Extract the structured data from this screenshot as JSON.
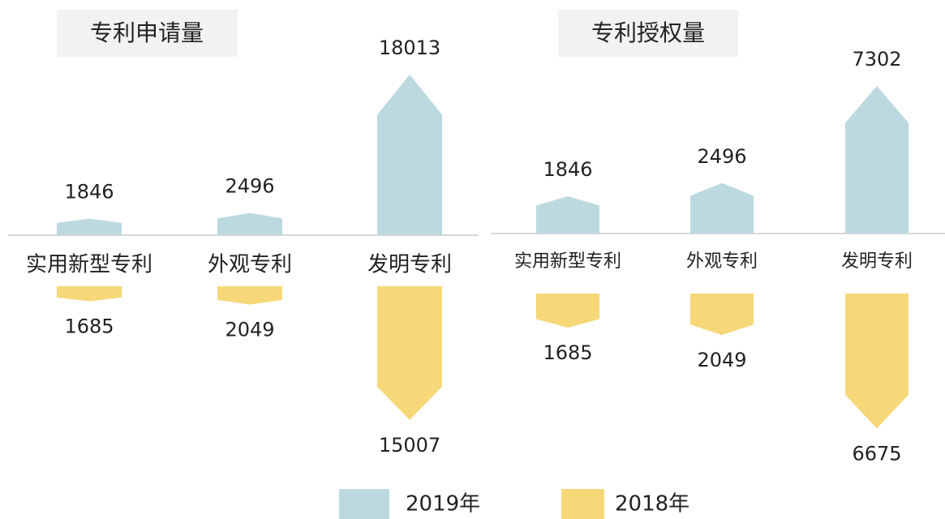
{
  "chart_data": [
    {
      "type": "arrow-bar",
      "title": "专利申请量",
      "categories": [
        "实用新型专利",
        "外观专利",
        "发明专利"
      ],
      "series": [
        {
          "name": "2019年",
          "color": "#bcd9e0",
          "values": [
            1846,
            2496,
            18013
          ]
        },
        {
          "name": "2018年",
          "color": "#f6d879",
          "values": [
            1685,
            2049,
            15007
          ]
        }
      ]
    },
    {
      "type": "arrow-bar",
      "title": "专利授权量",
      "categories": [
        "实用新型专利",
        "外观专利",
        "发明专利"
      ],
      "series": [
        {
          "color": "#bcd9e0",
          "values": [
            1846,
            2496,
            7302
          ]
        },
        {
          "color": "#f6d879",
          "values": [
            1685,
            2049,
            6675
          ]
        }
      ]
    }
  ]
}
